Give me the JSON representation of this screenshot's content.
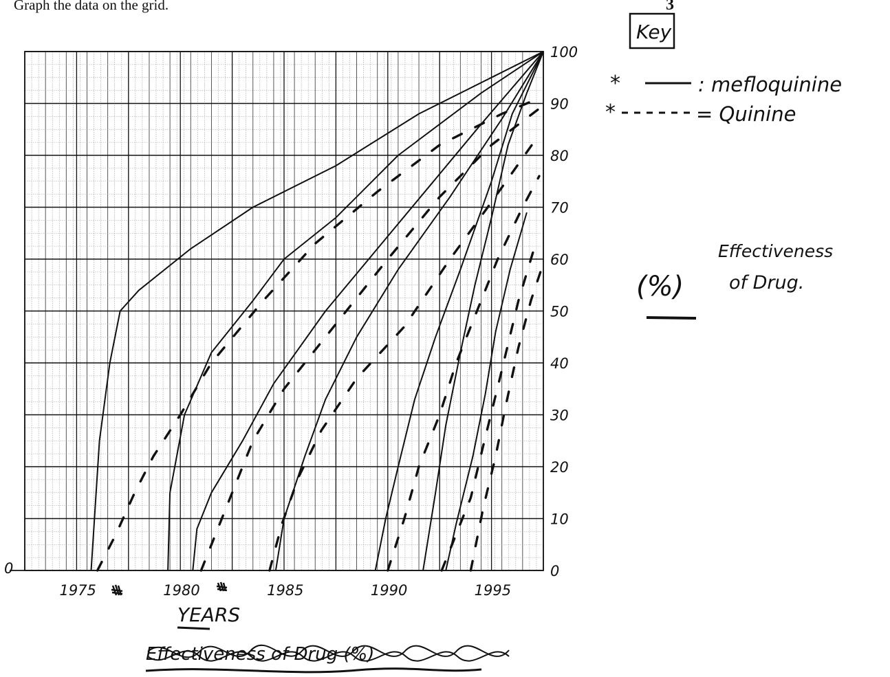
{
  "page": {
    "instruction": "Graph the data on the grid.",
    "page_number": "3"
  },
  "key": {
    "title": "Key",
    "entries": [
      {
        "marker": "*",
        "style": "solid",
        "label": ": mefloquinine"
      },
      {
        "marker": "*",
        "style": "dashed",
        "label": "= Quinine"
      }
    ]
  },
  "annotation": {
    "unit": "(%)",
    "text_line1": "Effectiveness",
    "text_line2": "of Drug."
  },
  "chart_data": {
    "type": "line",
    "title": "",
    "xlabel": "YEARS",
    "ylabel": "Effectiveness of Drug (%)",
    "struck_out_label": "Effectiveness of Drug (%)",
    "xlim": [
      1972,
      1997
    ],
    "ylim": [
      0,
      100
    ],
    "x_ticks": [
      1975,
      1980,
      1985,
      1990,
      1995
    ],
    "x_tick_labels": [
      "1975",
      "1980",
      "1985",
      "1990",
      "1995"
    ],
    "y_ticks": [
      0,
      10,
      20,
      30,
      40,
      50,
      60,
      70,
      80,
      90,
      100
    ],
    "y_tick_labels": [
      "0",
      "10",
      "20",
      "30",
      "40",
      "50",
      "60",
      "70",
      "80",
      "90",
      "100"
    ],
    "left_axis_label": "0",
    "grid": true,
    "series": [
      {
        "style": "solid",
        "points": [
          [
            1975.2,
            0
          ],
          [
            1975.6,
            25
          ],
          [
            1976.1,
            40
          ],
          [
            1976.6,
            50
          ],
          [
            1977.5,
            54
          ],
          [
            1980,
            62
          ],
          [
            1983,
            70
          ],
          [
            1987,
            78
          ],
          [
            1991,
            88
          ],
          [
            1995,
            96
          ],
          [
            1997,
            100
          ]
        ]
      },
      {
        "style": "solid",
        "points": [
          [
            1978.9,
            0
          ],
          [
            1979,
            15
          ],
          [
            1979.7,
            30
          ],
          [
            1981,
            42
          ],
          [
            1983,
            52
          ],
          [
            1984.5,
            60
          ],
          [
            1987,
            68
          ],
          [
            1990,
            80
          ],
          [
            1994,
            92
          ],
          [
            1997,
            100
          ]
        ]
      },
      {
        "style": "solid",
        "points": [
          [
            1980.1,
            0
          ],
          [
            1980.3,
            8
          ],
          [
            1981,
            15
          ],
          [
            1982.5,
            25
          ],
          [
            1984,
            36
          ],
          [
            1986.5,
            50
          ],
          [
            1989,
            62
          ],
          [
            1991.5,
            74
          ],
          [
            1994,
            86
          ],
          [
            1997,
            100
          ]
        ]
      },
      {
        "style": "solid",
        "points": [
          [
            1984.1,
            0
          ],
          [
            1984.5,
            10
          ],
          [
            1985.5,
            22
          ],
          [
            1986.5,
            33
          ],
          [
            1988,
            45
          ],
          [
            1990,
            58
          ],
          [
            1992.5,
            72
          ],
          [
            1995,
            87
          ],
          [
            1997,
            100
          ]
        ]
      },
      {
        "style": "solid",
        "points": [
          [
            1988.9,
            0
          ],
          [
            1989.4,
            10
          ],
          [
            1990,
            20
          ],
          [
            1990.8,
            33
          ],
          [
            1991.8,
            45
          ],
          [
            1993,
            58
          ],
          [
            1994.5,
            75
          ],
          [
            1995.5,
            88
          ],
          [
            1997,
            100
          ]
        ]
      },
      {
        "style": "solid",
        "points": [
          [
            1991.2,
            0
          ],
          [
            1991.8,
            15
          ],
          [
            1992.3,
            28
          ],
          [
            1993,
            42
          ],
          [
            1993.7,
            55
          ],
          [
            1994.5,
            68
          ],
          [
            1995.3,
            82
          ],
          [
            1996.2,
            92
          ],
          [
            1997,
            100
          ]
        ]
      },
      {
        "style": "solid",
        "points": [
          [
            1992.3,
            0
          ],
          [
            1992.8,
            9
          ],
          [
            1993.6,
            22
          ],
          [
            1994.2,
            34
          ],
          [
            1994.7,
            46
          ],
          [
            1995.4,
            58
          ],
          [
            1996.2,
            69
          ]
        ]
      },
      {
        "style": "dashed",
        "points": [
          [
            1975.5,
            0
          ],
          [
            1976.4,
            7
          ],
          [
            1977.3,
            15
          ],
          [
            1978.2,
            22
          ],
          [
            1979.5,
            30
          ],
          [
            1981,
            40
          ],
          [
            1983.5,
            52
          ],
          [
            1986,
            63
          ],
          [
            1989,
            73
          ],
          [
            1992,
            82
          ],
          [
            1995,
            88
          ],
          [
            1996.8,
            91
          ]
        ]
      },
      {
        "style": "dashed",
        "points": [
          [
            1980.5,
            0
          ],
          [
            1981.3,
            8
          ],
          [
            1982,
            15
          ],
          [
            1983,
            25
          ],
          [
            1984.5,
            35
          ],
          [
            1986.5,
            45
          ],
          [
            1989.5,
            60
          ],
          [
            1992,
            72
          ],
          [
            1994.5,
            82
          ],
          [
            1996.8,
            89
          ]
        ]
      },
      {
        "style": "dashed",
        "points": [
          [
            1983.8,
            0
          ],
          [
            1984.4,
            9
          ],
          [
            1985.2,
            18
          ],
          [
            1986.3,
            27
          ],
          [
            1988,
            37
          ],
          [
            1990.3,
            47
          ],
          [
            1992.5,
            60
          ],
          [
            1994.5,
            71
          ],
          [
            1996.8,
            84
          ]
        ]
      },
      {
        "style": "dashed",
        "points": [
          [
            1989.5,
            0
          ],
          [
            1990.3,
            10
          ],
          [
            1991,
            20
          ],
          [
            1992,
            30
          ],
          [
            1992.8,
            40
          ],
          [
            1993.8,
            50
          ],
          [
            1994.8,
            60
          ],
          [
            1996,
            70
          ],
          [
            1996.8,
            76
          ]
        ]
      },
      {
        "style": "dashed",
        "points": [
          [
            1992.1,
            0
          ],
          [
            1992.8,
            7
          ],
          [
            1993.5,
            14
          ],
          [
            1994.1,
            24
          ],
          [
            1994.9,
            37
          ],
          [
            1995.8,
            52
          ],
          [
            1996.7,
            64
          ]
        ]
      },
      {
        "style": "dashed",
        "points": [
          [
            1993.5,
            0
          ],
          [
            1994.1,
            12
          ],
          [
            1994.7,
            22
          ],
          [
            1995.2,
            32
          ],
          [
            1995.8,
            43
          ],
          [
            1996.4,
            52
          ],
          [
            1996.9,
            58
          ]
        ]
      }
    ]
  }
}
